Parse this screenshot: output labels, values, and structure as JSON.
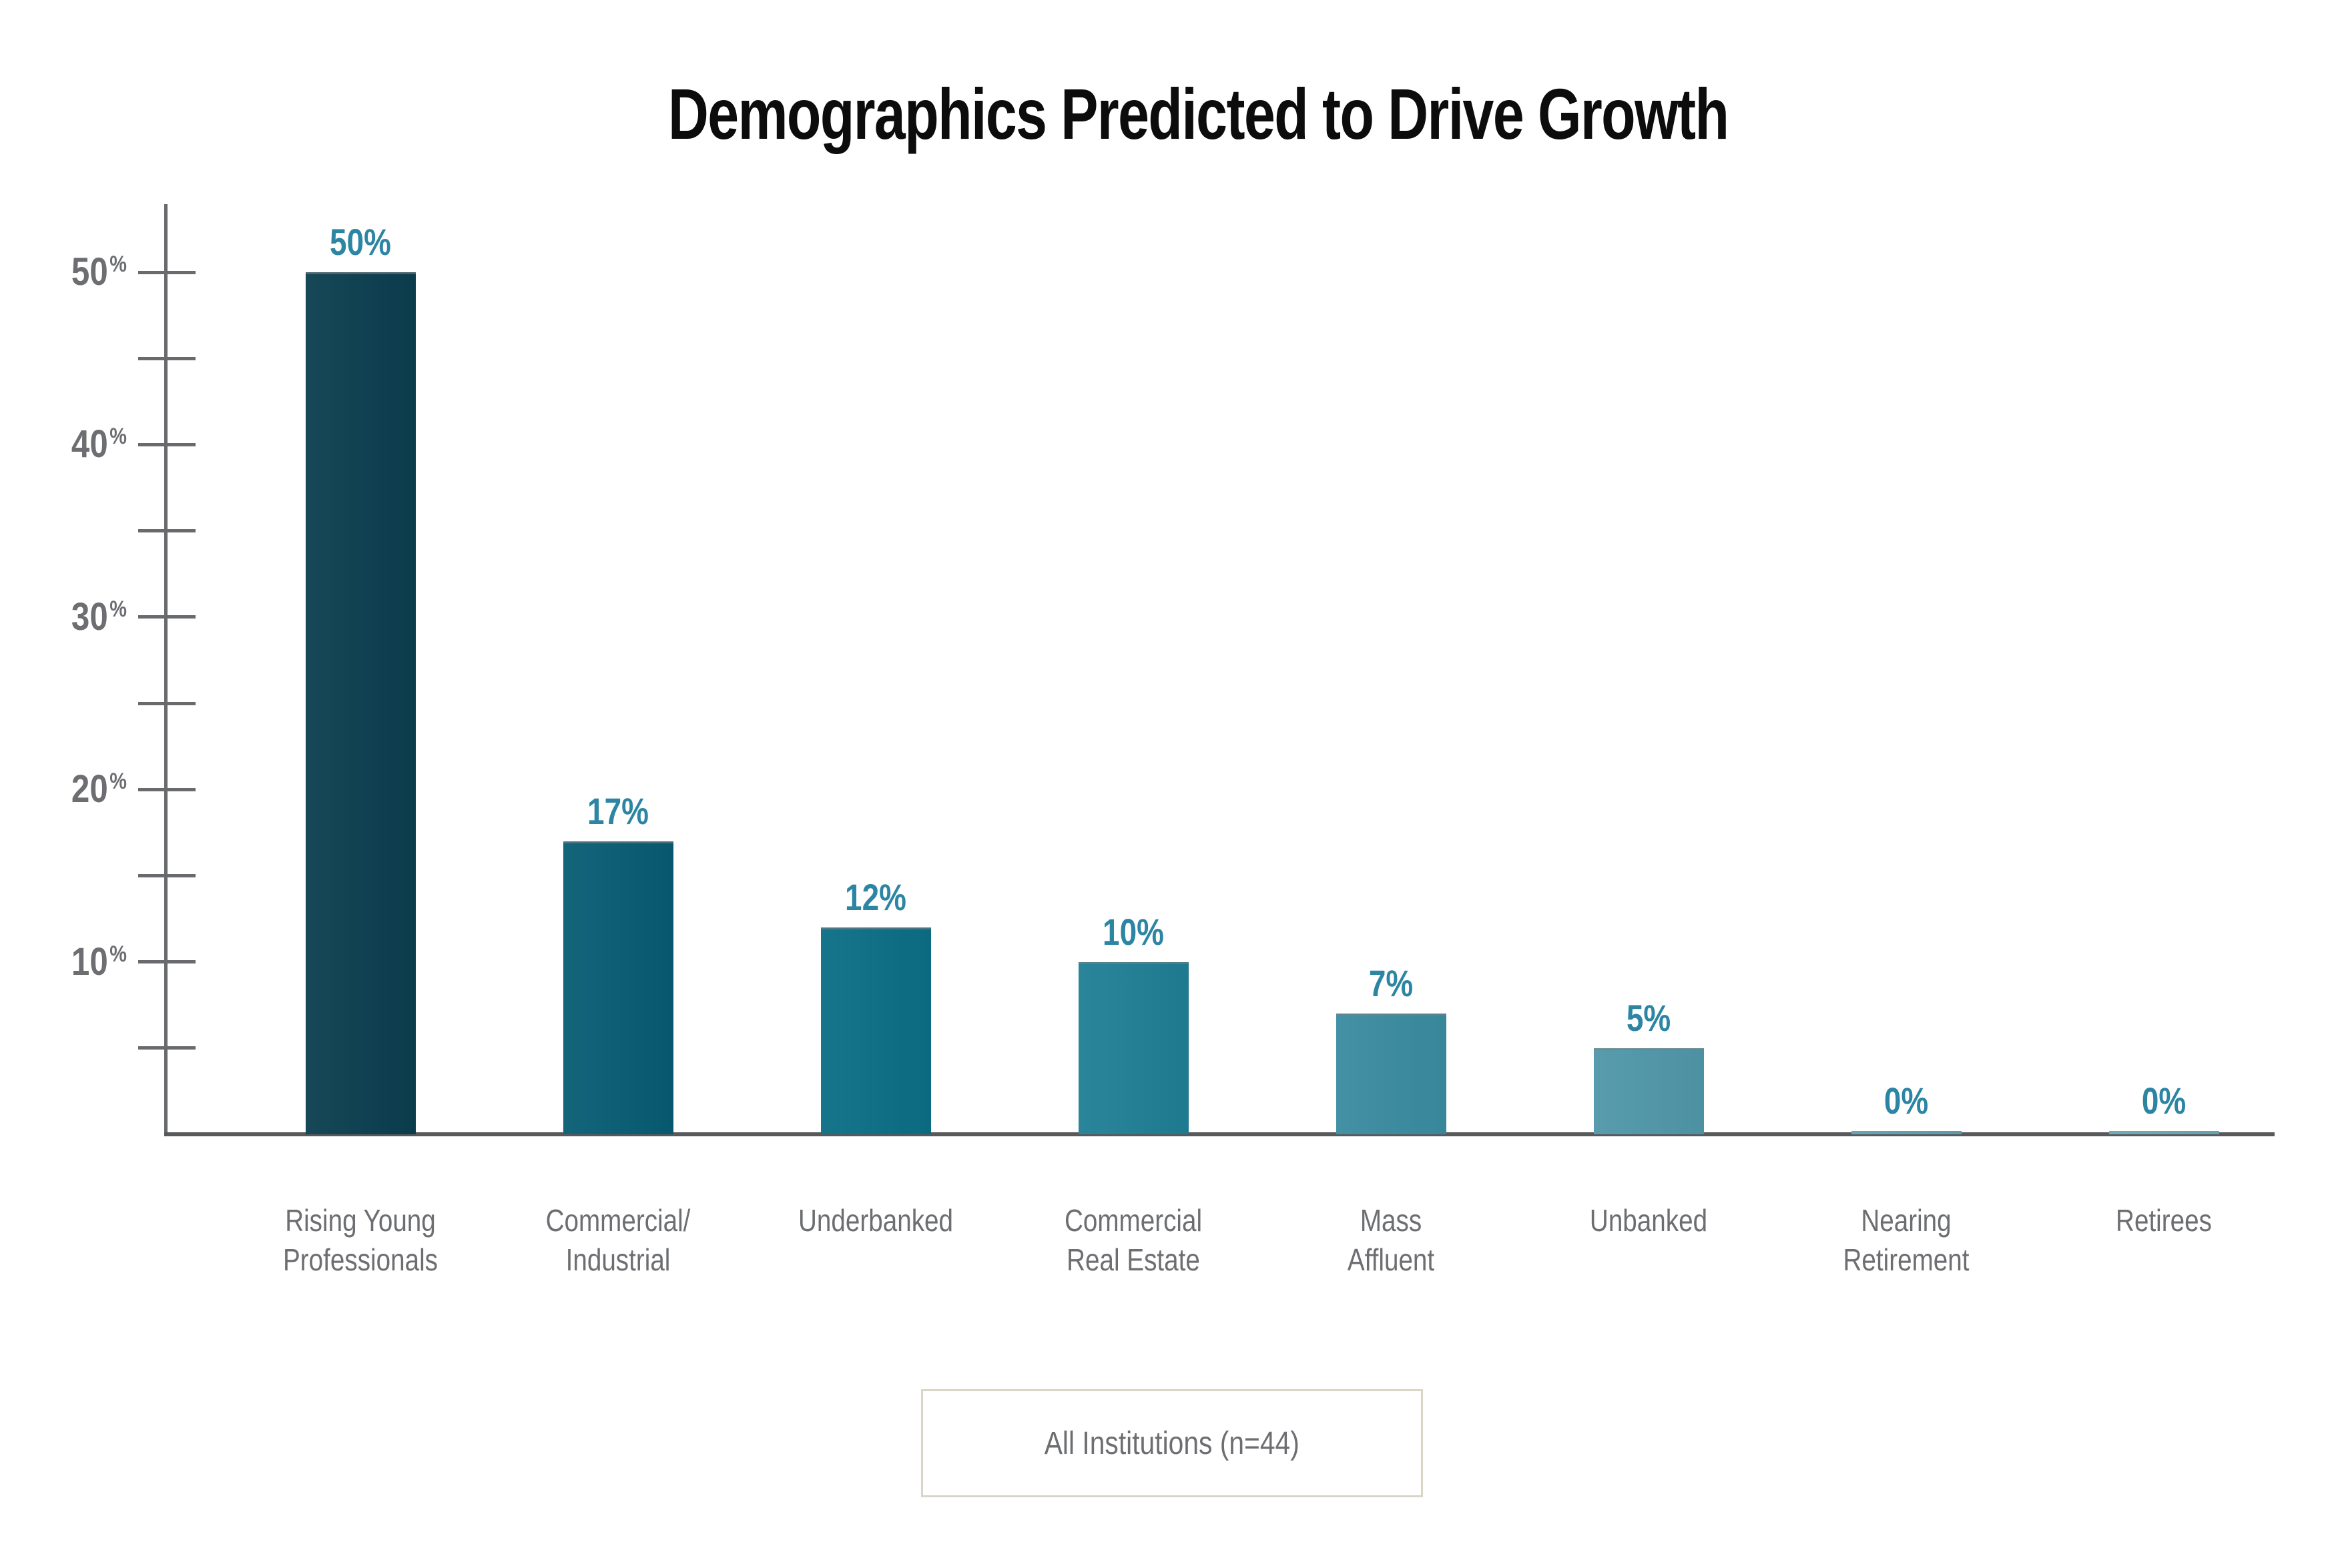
{
  "title": "Demographics Predicted to Drive Growth",
  "legend": {
    "label": "All Institutions (n=44)"
  },
  "colors": {
    "title": "#0c0c0c",
    "axis": "#696a6d",
    "baseline": "#58595b",
    "tick_label": "#6d6e71",
    "value_label": "#2c85a3",
    "x_label": "#6d6e71",
    "legend_border": "#d9d5c7",
    "bar_colors": [
      "#0a3e4f",
      "#075c73",
      "#0b6e85",
      "#1f7e95",
      "#3a8ba0",
      "#4f97a9",
      "#5fa0b0",
      "#6aa7b5"
    ]
  },
  "chart_data": {
    "type": "bar",
    "title": "Demographics Predicted to Drive Growth",
    "categories": [
      "Rising Young Professionals",
      "Commercial/Industrial",
      "Underbanked",
      "Commercial Real Estate",
      "Mass Affluent",
      "Unbanked",
      "Nearing Retirement",
      "Retirees"
    ],
    "category_lines": [
      [
        "Rising Young",
        "Professionals"
      ],
      [
        "Commercial/",
        "Industrial"
      ],
      [
        "Underbanked"
      ],
      [
        "Commercial",
        "Real Estate"
      ],
      [
        "Mass",
        "Affluent"
      ],
      [
        "Unbanked"
      ],
      [
        "Nearing",
        "Retirement"
      ],
      [
        "Retirees"
      ]
    ],
    "values": [
      50,
      17,
      12,
      10,
      7,
      5,
      0,
      0
    ],
    "value_labels": [
      "50%",
      "17%",
      "12%",
      "10%",
      "7%",
      "5%",
      "0%",
      "0%"
    ],
    "xlabel": "",
    "ylabel": "",
    "ylim": [
      0,
      54
    ],
    "yticks_major": [
      10,
      20,
      30,
      40,
      50
    ],
    "yticks_minor": [
      5,
      15,
      25,
      35,
      45
    ],
    "ytick_suffix": "%",
    "grid": false,
    "legend": [
      "All Institutions (n=44)"
    ],
    "legend_position": "bottom"
  }
}
